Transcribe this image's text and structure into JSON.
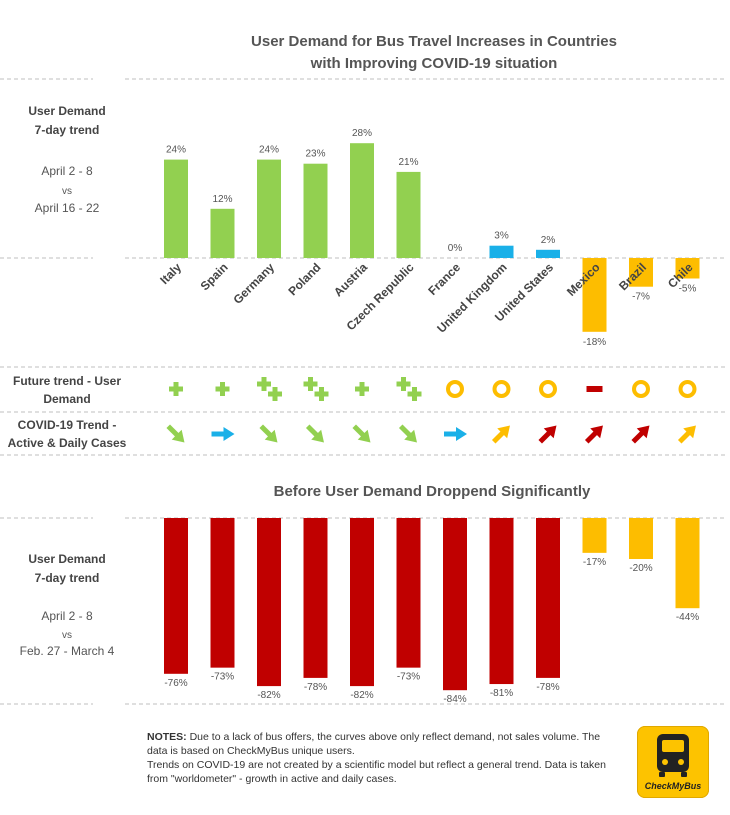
{
  "chart_data": [
    {
      "type": "bar",
      "title": "User Demand for Bus Travel Increases in Countries with Improving COVID-19 situation",
      "title_lines": [
        "User Demand for Bus Travel Increases in Countries",
        "with Improving COVID-19 situation"
      ],
      "side_label": [
        "User Demand",
        "7-day trend"
      ],
      "period": [
        "April 2 - 8",
        "vs",
        "April 16 - 22"
      ],
      "categories": [
        "Italy",
        "Spain",
        "Germany",
        "Poland",
        "Austria",
        "Czech Republic",
        "France",
        "United Kingdom",
        "United States",
        "Mexico",
        "Brazil",
        "Chile"
      ],
      "values": [
        24,
        12,
        24,
        23,
        28,
        21,
        0,
        3,
        2,
        -18,
        -7,
        -5
      ],
      "labels": [
        "24%",
        "12%",
        "24%",
        "23%",
        "28%",
        "21%",
        "0%",
        "3%",
        "2%",
        "-18%",
        "-7%",
        "-5%"
      ],
      "colors": [
        "#92d050",
        "#92d050",
        "#92d050",
        "#92d050",
        "#92d050",
        "#92d050",
        "#92d050",
        "#1ab0e8",
        "#1ab0e8",
        "#fdbd00",
        "#fdbd00",
        "#fdbd00"
      ]
    },
    {
      "type": "bar",
      "title": "Before User Demand Droppend Significantly",
      "side_label": [
        "User Demand",
        "7-day trend"
      ],
      "period": [
        "April 2 - 8",
        "vs",
        "Feb. 27 - March 4"
      ],
      "categories": [
        "Italy",
        "Spain",
        "Germany",
        "Poland",
        "Austria",
        "Czech Republic",
        "France",
        "United Kingdom",
        "United States",
        "Mexico",
        "Brazil",
        "Chile"
      ],
      "values": [
        -76,
        -73,
        -82,
        -78,
        -82,
        -73,
        -84,
        -81,
        -78,
        -17,
        -20,
        -44
      ],
      "labels": [
        "-76%",
        "-73%",
        "-82%",
        "-78%",
        "-82%",
        "-73%",
        "-84%",
        "-81%",
        "-78%",
        "-17%",
        "-20%",
        "-44%"
      ],
      "colors": [
        "#c00000",
        "#c00000",
        "#c00000",
        "#c00000",
        "#c00000",
        "#c00000",
        "#c00000",
        "#c00000",
        "#c00000",
        "#fdbd00",
        "#fdbd00",
        "#fdbd00"
      ]
    }
  ],
  "future_trend": {
    "label": [
      "Future trend - User",
      "Demand"
    ],
    "symbols": [
      "plus",
      "plus",
      "double-plus",
      "double-plus",
      "plus",
      "double-plus",
      "circle",
      "circle",
      "circle",
      "minus",
      "circle",
      "circle"
    ],
    "colors": {
      "plus": "#92d050",
      "circle": "#fdbd00",
      "minus": "#c00000"
    }
  },
  "covid_trend": {
    "label": [
      "COVID-19 Trend -",
      "Active & Daily Cases"
    ],
    "arrows": [
      "down-right",
      "right",
      "down-right",
      "down-right",
      "down-right",
      "down-right",
      "right",
      "up-right",
      "up-right",
      "up-right",
      "up-right",
      "up-right"
    ],
    "colors": [
      "#92d050",
      "#1ab0e8",
      "#92d050",
      "#92d050",
      "#92d050",
      "#92d050",
      "#1ab0e8",
      "#fdbd00",
      "#c00000",
      "#c00000",
      "#c00000",
      "#fdbd00"
    ]
  },
  "notes": {
    "heading": "NOTES:",
    "line1": "Due to a lack of bus offers, the curves above only reflect demand, not sales volume. The data is based on CheckMyBus unique users.",
    "line2": "Trends on COVID-19 are not created by a scientific model but reflect a general trend. Data is taken from \"worldometer\" - growth in active and daily cases."
  },
  "logo": {
    "text": "CheckMyBus"
  }
}
